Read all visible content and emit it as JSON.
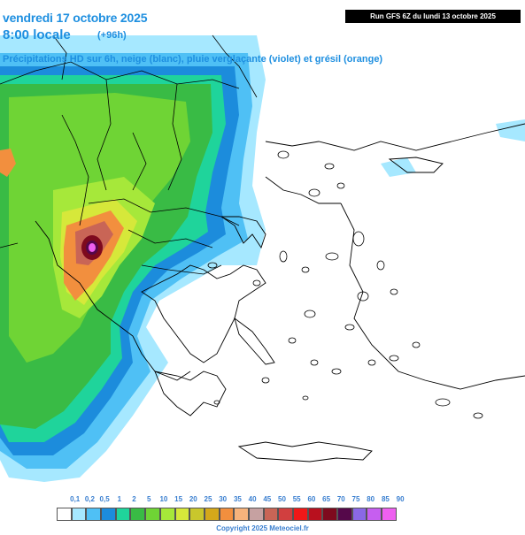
{
  "header": {
    "title": "vendredi 17 octobre 2025",
    "time": "8:00 locale",
    "lead": "(+96h)",
    "subtitle": "Précipitations HD sur 6h, neige (blanc), pluie verglaçante (violet) et grésil (orange)",
    "run": "Run GFS 6Z du lundi 13 octobre 2025"
  },
  "legend": {
    "labels": [
      "0,1",
      "0,2",
      "0,5",
      "1",
      "2",
      "5",
      "10",
      "15",
      "20",
      "25",
      "30",
      "35",
      "40",
      "45",
      "50",
      "55",
      "60",
      "65",
      "70",
      "75",
      "80",
      "85",
      "90"
    ],
    "colors": [
      "#ffffff",
      "#a6e8ff",
      "#4fc0f5",
      "#1c8cdc",
      "#1fd49b",
      "#39bb45",
      "#6fd435",
      "#a6e83a",
      "#d6e83a",
      "#c9c72c",
      "#d4a81a",
      "#f28f3e",
      "#f6b37c",
      "#c6a1a1",
      "#c96556",
      "#d13f3f",
      "#f01818",
      "#b8101e",
      "#7e0a1e",
      "#55084a",
      "#8a68e6",
      "#c65ef0",
      "#ee60f0"
    ]
  },
  "copyright": "Copyright 2025 Meteociel.fr",
  "map": {
    "ocean_color": "#ffffff",
    "border_color": "#000000",
    "coast_color": "#000000"
  }
}
